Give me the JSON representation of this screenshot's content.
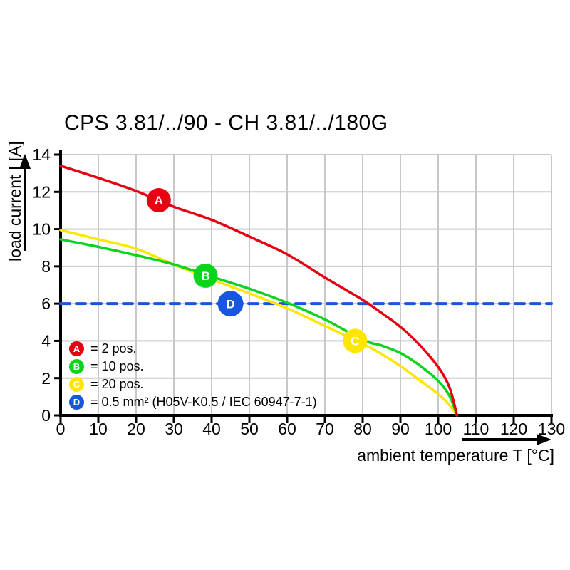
{
  "chart_data": {
    "type": "line",
    "title": "CPS 3.81/../90 - CH 3.81/../180G",
    "xlabel": "ambient temperature T [°C]",
    "ylabel": "load current I [A]",
    "xlim": [
      0,
      130
    ],
    "ylim": [
      0,
      14
    ],
    "x_ticks": [
      0,
      10,
      20,
      30,
      40,
      50,
      60,
      70,
      80,
      90,
      100,
      110,
      120,
      130
    ],
    "y_ticks": [
      0,
      2,
      4,
      6,
      8,
      10,
      12,
      14
    ],
    "grid": true,
    "grid_color": "#c8c8c8",
    "axis_color": "#000000",
    "marker_letter_color": "#ffffff",
    "legend_position": "lower-left",
    "series": [
      {
        "id": "A",
        "label": "= 2 pos.",
        "color": "#e60012",
        "style": "solid",
        "marker_at": [
          26,
          11.55
        ],
        "points": [
          [
            0,
            13.4
          ],
          [
            10,
            12.75
          ],
          [
            20,
            12.05
          ],
          [
            30,
            11.2
          ],
          [
            40,
            10.5
          ],
          [
            50,
            9.6
          ],
          [
            60,
            8.65
          ],
          [
            70,
            7.4
          ],
          [
            80,
            6.2
          ],
          [
            85,
            5.5
          ],
          [
            90,
            4.75
          ],
          [
            95,
            3.8
          ],
          [
            100,
            2.6
          ],
          [
            103,
            1.5
          ],
          [
            105,
            0
          ]
        ]
      },
      {
        "id": "B",
        "label": "= 10 pos.",
        "color": "#0ad41c",
        "style": "solid",
        "marker_at": [
          38.4,
          7.5
        ],
        "points": [
          [
            0,
            9.45
          ],
          [
            10,
            9.05
          ],
          [
            20,
            8.6
          ],
          [
            30,
            8.1
          ],
          [
            40,
            7.45
          ],
          [
            50,
            6.8
          ],
          [
            60,
            6.05
          ],
          [
            70,
            5.15
          ],
          [
            80,
            4.05
          ],
          [
            85,
            3.75
          ],
          [
            90,
            3.35
          ],
          [
            95,
            2.7
          ],
          [
            100,
            1.85
          ],
          [
            103,
            1.05
          ],
          [
            105,
            0
          ]
        ]
      },
      {
        "id": "C",
        "label": "= 20 pos.",
        "color": "#ffe600",
        "style": "solid",
        "marker_at": [
          78,
          4.0
        ],
        "points": [
          [
            0,
            9.95
          ],
          [
            10,
            9.45
          ],
          [
            20,
            8.95
          ],
          [
            30,
            8.1
          ],
          [
            40,
            7.3
          ],
          [
            50,
            6.55
          ],
          [
            60,
            5.75
          ],
          [
            70,
            4.8
          ],
          [
            80,
            3.85
          ],
          [
            85,
            3.3
          ],
          [
            90,
            2.65
          ],
          [
            95,
            1.9
          ],
          [
            100,
            1.15
          ],
          [
            103,
            0.55
          ],
          [
            105,
            0
          ]
        ]
      },
      {
        "id": "D",
        "label": "= 0.5 mm² (H05V-K0.5 / IEC 60947-7-1)",
        "color": "#1956e0",
        "style": "dashed",
        "marker_at": [
          45,
          6
        ],
        "points": [
          [
            0,
            6
          ],
          [
            130,
            6
          ]
        ]
      }
    ]
  },
  "legend": {
    "items": [
      {
        "id": "A",
        "color": "#e60012",
        "label": "= 2 pos."
      },
      {
        "id": "B",
        "color": "#0ad41c",
        "label": "= 10 pos."
      },
      {
        "id": "C",
        "color": "#ffe600",
        "label": "= 20 pos."
      },
      {
        "id": "D",
        "color": "#1956e0",
        "label": "= 0.5 mm² (H05V-K0.5 / IEC 60947-7-1)"
      }
    ]
  }
}
